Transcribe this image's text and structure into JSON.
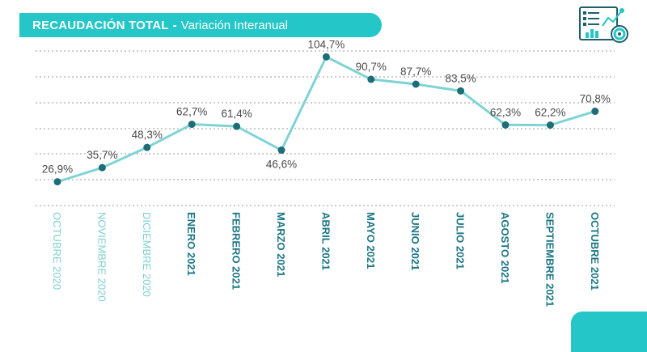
{
  "header": {
    "title_bold": "RECAUDACIÓN TOTAL",
    "separator": "-",
    "subtitle": "Variación Interanual"
  },
  "colors": {
    "accent": "#24c6c8",
    "line": "#7fd3d4",
    "marker": "#1e6e78",
    "label_text": "#4a4a4a",
    "month_light": "#7ecfd1",
    "month_dark": "#1b7684",
    "grid": "#9a9a9a",
    "icon_dark": "#1e5f6a"
  },
  "icons": {
    "report": "report-dashboard-icon"
  },
  "chart_data": {
    "type": "line",
    "title": "RECAUDACIÓN TOTAL - Variación Interanual",
    "xlabel": "",
    "ylabel": "",
    "ylim": [
      0,
      125
    ],
    "grid": true,
    "categories": [
      "OCTUBRE 2020",
      "NOVIEMBRE 2020",
      "DICIEMBRE 2020",
      "ENERO 2021",
      "FEBRERO 2021",
      "MARZO 2021",
      "ABRIL 2021",
      "MAYO 2021",
      "JUNIO 2021",
      "JULIO 2021",
      "AGOSTO 2021",
      "SEPTIEMBRE 2021",
      "OCTUBRE  2021"
    ],
    "category_style": [
      "light",
      "light",
      "light",
      "bold",
      "bold",
      "bold",
      "bold",
      "bold",
      "bold",
      "bold",
      "bold",
      "bold",
      "bold"
    ],
    "values": [
      26.9,
      35.7,
      48.3,
      62.7,
      61.4,
      46.6,
      104.7,
      90.7,
      87.7,
      83.5,
      62.3,
      62.2,
      70.8
    ],
    "labels": [
      "26,9%",
      "35,7%",
      "48,3%",
      "62,7%",
      "61,4%",
      "46,6%",
      "104,7%",
      "90,7%",
      "87,7%",
      "83,5%",
      "62,3%",
      "62,2%",
      "70,8%"
    ],
    "label_position": [
      "above",
      "above",
      "above",
      "above",
      "above",
      "below",
      "above",
      "above",
      "above",
      "above",
      "above",
      "above",
      "above"
    ]
  }
}
